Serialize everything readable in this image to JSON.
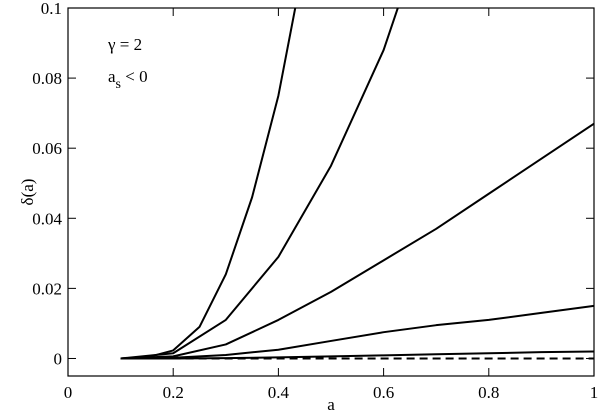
{
  "chart_data": {
    "type": "line",
    "xlabel": "a",
    "ylabel": "δ(a)",
    "annotations": {
      "gamma": "γ = 2",
      "as": {
        "text": "a",
        "subscript": "s",
        "rest": " < 0"
      }
    },
    "xlim": [
      0,
      1
    ],
    "xticks": [
      0,
      0.2,
      0.4,
      0.6,
      0.8,
      1
    ],
    "ylim": [
      -0.005,
      0.1
    ],
    "yticks": [
      0,
      0.02,
      0.04,
      0.06,
      0.08,
      0.1
    ],
    "series": [
      {
        "color": "#000000",
        "dashed": false,
        "x": [
          0.1,
          0.15,
          0.2,
          0.25,
          0.3,
          0.35,
          0.4,
          0.432
        ],
        "values": [
          0,
          0.0003,
          0.0023,
          0.009,
          0.024,
          0.046,
          0.075,
          0.1
        ]
      },
      {
        "color": "#000000",
        "dashed": false,
        "x": [
          0.1,
          0.2,
          0.3,
          0.4,
          0.5,
          0.6,
          0.627
        ],
        "values": [
          0,
          0.0015,
          0.011,
          0.029,
          0.055,
          0.088,
          0.1
        ]
      },
      {
        "color": "#000000",
        "dashed": false,
        "x": [
          0.1,
          0.2,
          0.3,
          0.4,
          0.5,
          0.6,
          0.7,
          0.8,
          0.9,
          1
        ],
        "values": [
          0,
          0.0006,
          0.004,
          0.011,
          0.019,
          0.028,
          0.037,
          0.047,
          0.057,
          0.067
        ]
      },
      {
        "color": "#000000",
        "dashed": false,
        "x": [
          0.1,
          0.2,
          0.3,
          0.4,
          0.5,
          0.6,
          0.7,
          0.8,
          0.9,
          1
        ],
        "values": [
          0,
          0.0002,
          0.001,
          0.0025,
          0.005,
          0.0075,
          0.0095,
          0.011,
          0.013,
          0.015
        ]
      },
      {
        "color": "#000000",
        "dashed": false,
        "x": [
          0.1,
          0.2,
          0.3,
          0.4,
          0.5,
          0.6,
          0.7,
          0.8,
          0.9,
          1
        ],
        "values": [
          0,
          0,
          0.0001,
          0.0003,
          0.0006,
          0.0009,
          0.0012,
          0.0015,
          0.0018,
          0.002
        ]
      },
      {
        "color": "#000000",
        "dashed": true,
        "x": [
          0.1,
          0.2,
          0.3,
          0.4,
          0.5,
          0.6,
          0.7,
          0.8,
          0.9,
          1
        ],
        "values": [
          0,
          0,
          0,
          0,
          0,
          0,
          0,
          0,
          0,
          0
        ]
      }
    ]
  }
}
